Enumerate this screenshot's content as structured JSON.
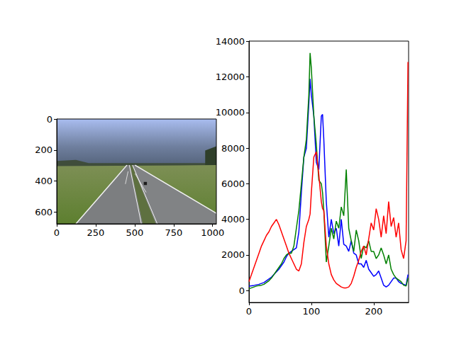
{
  "chart_data": [
    {
      "type": "image",
      "xlim": [
        0,
        1024
      ],
      "ylim": [
        675,
        0
      ],
      "xticks": [
        0,
        250,
        500,
        750,
        1000
      ],
      "yticks": [
        0,
        200,
        400,
        600
      ]
    },
    {
      "type": "line",
      "xlim": [
        0,
        256
      ],
      "ylim": [
        -670,
        14020
      ],
      "xticks": [
        0,
        100,
        200
      ],
      "yticks": [
        0,
        2000,
        4000,
        6000,
        8000,
        10000,
        12000,
        14000
      ],
      "x": [
        0,
        4,
        8,
        12,
        16,
        20,
        24,
        28,
        32,
        36,
        40,
        44,
        48,
        52,
        56,
        60,
        64,
        68,
        72,
        76,
        80,
        84,
        88,
        92,
        96,
        98,
        100,
        104,
        108,
        112,
        116,
        118,
        120,
        124,
        128,
        132,
        136,
        140,
        144,
        148,
        152,
        156,
        160,
        164,
        168,
        172,
        176,
        180,
        184,
        188,
        192,
        196,
        200,
        204,
        208,
        212,
        216,
        220,
        224,
        228,
        232,
        236,
        240,
        244,
        248,
        252,
        255
      ],
      "series": [
        {
          "color": "#0000ff",
          "values": [
            250,
            270,
            290,
            320,
            350,
            400,
            450,
            550,
            650,
            750,
            900,
            1050,
            1200,
            1400,
            1600,
            1900,
            2100,
            2200,
            2300,
            2400,
            3300,
            5500,
            7500,
            8000,
            10500,
            11900,
            11000,
            9800,
            7200,
            6800,
            9800,
            9900,
            8500,
            5000,
            3000,
            4000,
            3200,
            3500,
            2500,
            4000,
            2600,
            2500,
            2200,
            2800,
            2100,
            2000,
            1500,
            1500,
            1300,
            1700,
            1200,
            1000,
            800,
            900,
            1100,
            700,
            300,
            200,
            300,
            500,
            700,
            700,
            500,
            400,
            350,
            300,
            900
          ]
        },
        {
          "color": "#008000",
          "values": [
            100,
            150,
            200,
            250,
            280,
            300,
            350,
            450,
            550,
            700,
            900,
            1100,
            1300,
            1500,
            1800,
            2000,
            2100,
            2100,
            2500,
            3500,
            4500,
            6000,
            7500,
            8500,
            11000,
            13350,
            12500,
            9800,
            8200,
            6200,
            6000,
            5500,
            4500,
            1600,
            2500,
            3500,
            2900,
            3900,
            3500,
            4700,
            4200,
            6800,
            3500,
            2800,
            2200,
            3400,
            2800,
            1800,
            2500,
            2400,
            2800,
            2200,
            2200,
            1800,
            2000,
            2400,
            2000,
            1500,
            2000,
            1200,
            900,
            700,
            600,
            500,
            300,
            250,
            700
          ]
        },
        {
          "color": "#ff0000",
          "values": [
            500,
            900,
            1300,
            1700,
            2100,
            2500,
            2800,
            3100,
            3300,
            3600,
            3800,
            4000,
            3700,
            3300,
            2900,
            2500,
            2100,
            1800,
            1500,
            1200,
            1100,
            1500,
            2700,
            3600,
            4000,
            4300,
            5500,
            7500,
            7800,
            6500,
            5000,
            4600,
            4500,
            2500,
            1500,
            900,
            600,
            400,
            300,
            200,
            150,
            150,
            200,
            400,
            800,
            1300,
            1700,
            2200,
            2500,
            2000,
            2900,
            3800,
            3400,
            4600,
            4000,
            3000,
            4200,
            3200,
            5000,
            3600,
            4100,
            3000,
            3800,
            2300,
            1800,
            2800,
            12850
          ]
        }
      ]
    }
  ]
}
